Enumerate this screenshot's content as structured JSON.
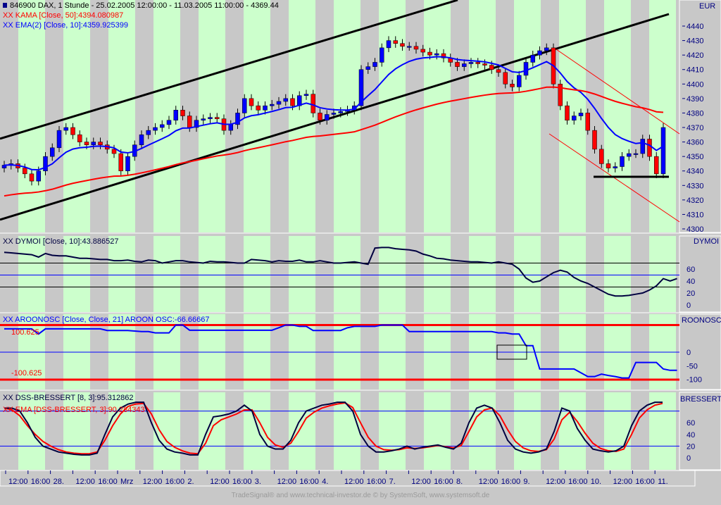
{
  "header": {
    "symbol_icon": "blue-square-icon",
    "title": "846900  DAX, 1 Stunde - 25.02.2005 12:00:00 - 11.03.2005 11:00:00 - 4369.44"
  },
  "main": {
    "currency": "EUR",
    "kama_label": "XX KAMA [Close, 50]:4394.080987",
    "ema_label": "XX EMA(2) [Close, 10]:4359.925399",
    "price_ticks": [
      "4440",
      "4430",
      "4420",
      "4410",
      "4400",
      "4390",
      "4380",
      "4370",
      "4360",
      "4350",
      "4340",
      "4330",
      "4320",
      "4310",
      "4300"
    ]
  },
  "dymoi": {
    "title": "DYMOI",
    "label": "XX DYMOI [Close, 10]:43.886527",
    "ticks": [
      "60",
      "40",
      "20",
      "0"
    ]
  },
  "aroon": {
    "title": "ROONOSC",
    "label": "XX AROONOSC [Close, Close, 21] AROON OSC:-66.66667",
    "overlay_label": "100.625",
    "level_label": "-100.625",
    "ticks": [
      "0",
      "-50",
      "-100"
    ]
  },
  "dss": {
    "title": "BRESSERT",
    "label": "XX DSS-BRESSERT [8, 3]:95.312862",
    "ema_label": "XX EMA [DSS-BRESSERT, 3]:90.284343",
    "ticks": [
      "60",
      "40",
      "20",
      "0"
    ]
  },
  "time_axis": [
    "12:00",
    "16:00",
    "28.",
    "12:00",
    "16:00",
    "Mrz",
    "12:00",
    "16:00",
    "2.",
    "12:00",
    "16:00",
    "3.",
    "12:00",
    "16:00",
    "4.",
    "12:00",
    "16:00",
    "7.",
    "12:00",
    "16:00",
    "8.",
    "12:00",
    "16:00",
    "9.",
    "12:00",
    "16:00",
    "10.",
    "12:00",
    "16:00",
    "11."
  ],
  "footer": "TradeSignal® and www.technical-investor.de © by  SystemSoft, www.systemsoft.de",
  "colors": {
    "gray": "#c8c8c8",
    "green": "#ccffcc",
    "up": "#0000ff",
    "down": "#ff0000",
    "kama": "#ff0000",
    "ema": "#0000ff",
    "osc": "#000040"
  },
  "chart_data": {
    "type": "candlestick",
    "closes": [
      4344,
      4345,
      4342,
      4338,
      4333,
      4340,
      4350,
      4356,
      4368,
      4370,
      4365,
      4360,
      4358,
      4360,
      4358,
      4355,
      4352,
      4340,
      4350,
      4358,
      4365,
      4368,
      4370,
      4372,
      4375,
      4382,
      4378,
      4370,
      4375,
      4376,
      4377,
      4376,
      4368,
      4372,
      4380,
      4390,
      4385,
      4382,
      4385,
      4386,
      4388,
      4390,
      4385,
      4392,
      4393,
      4380,
      4375,
      4379,
      4380,
      4381,
      4382,
      4385,
      4410,
      4412,
      4415,
      4425,
      4430,
      4428,
      4426,
      4426,
      4424,
      4422,
      4420,
      4421,
      4418,
      4415,
      4412,
      4414,
      4415,
      4414,
      4413,
      4410,
      4408,
      4400,
      4398,
      4406,
      4415,
      4420,
      4423,
      4425,
      4400,
      4385,
      4375,
      4378,
      4380,
      4368,
      4355,
      4345,
      4342,
      4343,
      4350,
      4352,
      4352,
      4362,
      4350,
      4338,
      4370
    ],
    "dymoi": [
      88,
      87,
      86,
      85,
      84,
      80,
      86,
      83,
      82,
      82,
      80,
      78,
      78,
      77,
      76,
      76,
      74,
      74,
      75,
      73,
      72,
      75,
      74,
      70,
      72,
      74,
      74,
      72,
      71,
      70,
      73,
      72,
      72,
      71,
      70,
      70,
      76,
      75,
      74,
      72,
      74,
      73,
      73,
      75,
      72,
      72,
      74,
      72,
      70,
      70,
      71,
      72,
      70,
      68,
      95,
      96,
      96,
      94,
      93,
      92,
      90,
      85,
      82,
      78,
      77,
      75,
      74,
      73,
      72,
      72,
      71,
      70,
      72,
      70,
      68,
      60,
      45,
      38,
      40,
      47,
      54,
      58,
      55,
      46,
      40,
      36,
      30,
      24,
      18,
      15,
      15,
      16,
      18,
      20,
      25,
      32,
      44,
      40,
      44
    ],
    "aroon": [
      86,
      86,
      86,
      86,
      86,
      67,
      86,
      86,
      86,
      86,
      86,
      86,
      86,
      86,
      86,
      80,
      80,
      80,
      80,
      78,
      76,
      76,
      71,
      71,
      71,
      100,
      100,
      81,
      81,
      81,
      81,
      81,
      81,
      81,
      81,
      81,
      81,
      81,
      81,
      81,
      90,
      100,
      100,
      95,
      95,
      80,
      80,
      80,
      80,
      80,
      90,
      95,
      95,
      95,
      95,
      100,
      100,
      100,
      100,
      76,
      76,
      76,
      76,
      76,
      76,
      76,
      76,
      76,
      76,
      76,
      76,
      76,
      71,
      71,
      67,
      67,
      24,
      24,
      -62,
      -62,
      -62,
      -62,
      -62,
      -62,
      -76,
      -90,
      -90,
      -81,
      -86,
      -90,
      -95,
      -95,
      -38,
      -38,
      -38,
      -38,
      -62,
      -67,
      -67
    ],
    "dss": [
      85,
      85,
      80,
      60,
      35,
      20,
      15,
      10,
      8,
      6,
      5,
      5,
      8,
      40,
      70,
      85,
      92,
      95,
      95,
      60,
      30,
      15,
      10,
      8,
      5,
      5,
      40,
      70,
      72,
      75,
      80,
      90,
      80,
      40,
      20,
      15,
      15,
      30,
      60,
      80,
      85,
      90,
      92,
      95,
      95,
      80,
      40,
      20,
      10,
      10,
      12,
      15,
      20,
      15,
      18,
      20,
      22,
      18,
      15,
      25,
      60,
      85,
      90,
      85,
      60,
      30,
      15,
      10,
      8,
      10,
      15,
      45,
      85,
      80,
      50,
      30,
      15,
      12,
      10,
      12,
      20,
      55,
      80,
      90,
      95,
      95
    ],
    "dss_ema": [
      85,
      82,
      72,
      55,
      40,
      28,
      20,
      14,
      10,
      8,
      7,
      7,
      10,
      30,
      55,
      75,
      88,
      92,
      93,
      75,
      48,
      28,
      18,
      12,
      8,
      7,
      25,
      55,
      65,
      70,
      75,
      82,
      82,
      60,
      35,
      22,
      18,
      25,
      45,
      68,
      78,
      85,
      89,
      92,
      94,
      86,
      60,
      35,
      20,
      14,
      13,
      14,
      17,
      16,
      17,
      19,
      21,
      19,
      17,
      21,
      45,
      70,
      82,
      85,
      72,
      48,
      28,
      17,
      12,
      11,
      14,
      32,
      65,
      78,
      62,
      42,
      25,
      16,
      12,
      11,
      15,
      40,
      68,
      82,
      90,
      93
    ]
  }
}
